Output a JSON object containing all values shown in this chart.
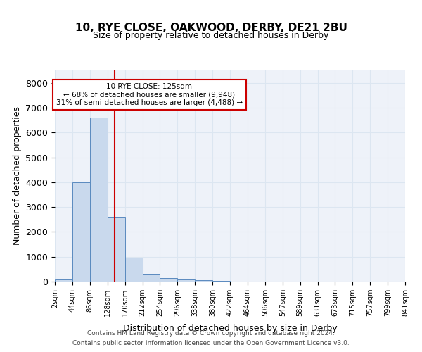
{
  "title": "10, RYE CLOSE, OAKWOOD, DERBY, DE21 2BU",
  "subtitle": "Size of property relative to detached houses in Derby",
  "xlabel": "Distribution of detached houses by size in Derby",
  "ylabel": "Number of detached properties",
  "bin_labels": [
    "2sqm",
    "44sqm",
    "86sqm",
    "128sqm",
    "170sqm",
    "212sqm",
    "254sqm",
    "296sqm",
    "338sqm",
    "380sqm",
    "422sqm",
    "464sqm",
    "506sqm",
    "547sqm",
    "589sqm",
    "631sqm",
    "673sqm",
    "715sqm",
    "757sqm",
    "799sqm",
    "841sqm"
  ],
  "bar_values": [
    75,
    4000,
    6600,
    2600,
    950,
    310,
    130,
    80,
    55,
    30,
    0,
    0,
    0,
    0,
    0,
    0,
    0,
    0,
    0,
    0
  ],
  "bar_color": "#c9d9ed",
  "bar_edge_color": "#5a8abf",
  "grid_color": "#dce6f1",
  "background_color": "#eef2f9",
  "vline_color": "#cc0000",
  "annotation_text": "10 RYE CLOSE: 125sqm\n← 68% of detached houses are smaller (9,948)\n31% of semi-detached houses are larger (4,488) →",
  "annotation_box_color": "#ffffff",
  "annotation_box_edgecolor": "#cc0000",
  "ylim": [
    0,
    8500
  ],
  "yticks": [
    0,
    1000,
    2000,
    3000,
    4000,
    5000,
    6000,
    7000,
    8000
  ],
  "footer_line1": "Contains HM Land Registry data © Crown copyright and database right 2024.",
  "footer_line2": "Contains public sector information licensed under the Open Government Licence v3.0."
}
